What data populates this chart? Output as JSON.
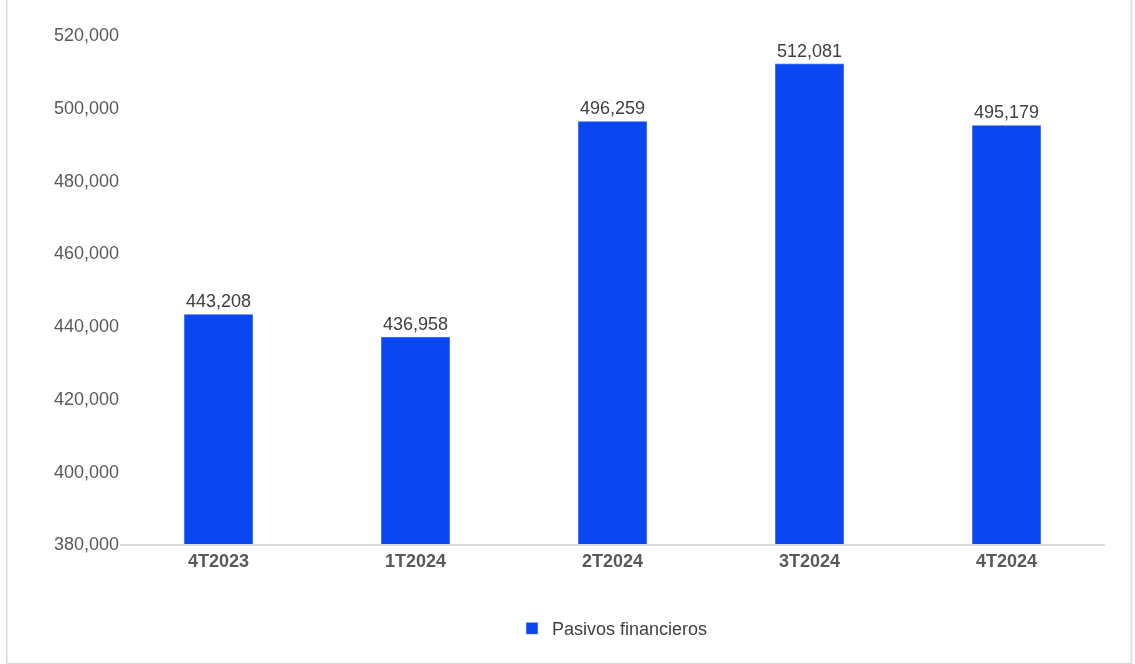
{
  "chart_data": {
    "type": "bar",
    "categories": [
      "4T2023",
      "1T2024",
      "2T2024",
      "3T2024",
      "4T2024"
    ],
    "series": [
      {
        "name": "Pasivos financieros",
        "color": "#0a47f0",
        "values": [
          443208,
          436958,
          496259,
          512081,
          495179
        ],
        "value_labels": [
          "443,208",
          "436,958",
          "496,259",
          "512,081",
          "495,179"
        ]
      }
    ],
    "ylim": [
      380000,
      520000
    ],
    "yticks": [
      {
        "value": 380000,
        "label": "380,000"
      },
      {
        "value": 400000,
        "label": "400,000"
      },
      {
        "value": 420000,
        "label": "420,000"
      },
      {
        "value": 440000,
        "label": "440,000"
      },
      {
        "value": 460000,
        "label": "460,000"
      },
      {
        "value": 480000,
        "label": "480,000"
      },
      {
        "value": 500000,
        "label": "500,000"
      },
      {
        "value": 520000,
        "label": "520,000"
      }
    ],
    "grid": false,
    "legend": "bottom"
  }
}
